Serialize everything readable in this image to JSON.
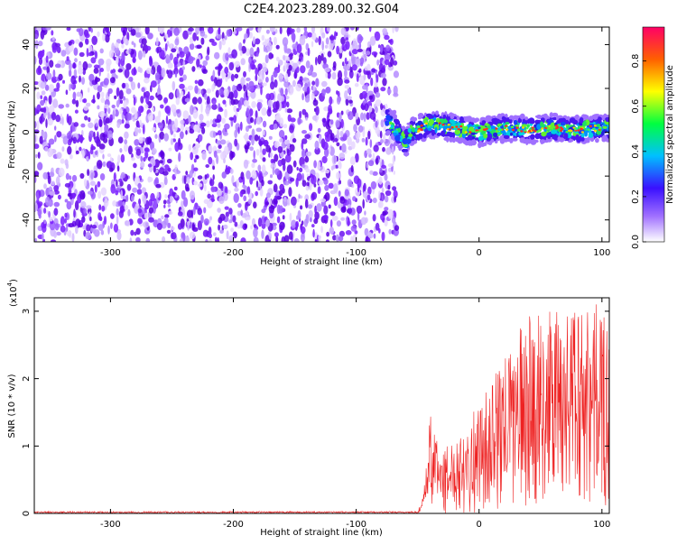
{
  "title": "C2E4.2023.289.00.32.G04",
  "colors": {
    "snr_line": "#ee2222",
    "spec_low": "#7a1fff",
    "spec_band": "#2222dd"
  },
  "chart_data": [
    {
      "type": "heatmap",
      "title": "C2E4.2023.289.00.32.G04",
      "xlabel": "Height of straight line (km)",
      "ylabel": "Frequency (Hz)",
      "xlim": [
        -362,
        106
      ],
      "ylim": [
        -50,
        48
      ],
      "xticks": [
        -300,
        -200,
        -100,
        0,
        100
      ],
      "yticks": [
        -40,
        -20,
        0,
        20,
        40
      ],
      "colorbar": {
        "label": "Normalized spectral amplitude",
        "range": [
          0,
          0.95
        ],
        "ticks": [
          0.0,
          0.2,
          0.4,
          0.6,
          0.8
        ],
        "colormap": "rainbow (violet to red)"
      },
      "regions": [
        {
          "x": [
            -362,
            -75
          ],
          "y": [
            -50,
            48
          ],
          "level": 0.15
        },
        {
          "x": [
            -75,
            106
          ],
          "y": [
            -8,
            8
          ],
          "level": 0.6
        }
      ],
      "signal_track": [
        [
          -80,
          8
        ],
        [
          -70,
          3
        ],
        [
          -60,
          -5
        ],
        [
          -55,
          0
        ],
        [
          -40,
          4
        ],
        [
          -20,
          2
        ],
        [
          0,
          0
        ],
        [
          20,
          2
        ],
        [
          40,
          1
        ],
        [
          60,
          2
        ],
        [
          80,
          1
        ],
        [
          100,
          2
        ]
      ],
      "grid": false
    },
    {
      "type": "line",
      "xlabel": "Height of straight line (km)",
      "ylabel": "SNR (10 * v/v)",
      "y_multiplier_label": "(x10",
      "y_multiplier_exp": "4",
      "xlim": [
        -362,
        106
      ],
      "ylim": [
        0,
        3.2
      ],
      "xticks": [
        -300,
        -200,
        -100,
        0,
        100
      ],
      "yticks": [
        0,
        1,
        2,
        3
      ],
      "noise_floor": 0.02,
      "envelope": [
        [
          -362,
          0.02
        ],
        [
          -50,
          0.03
        ],
        [
          -45,
          0.3
        ],
        [
          -40,
          1.5
        ],
        [
          -30,
          0.9
        ],
        [
          -10,
          1.4
        ],
        [
          0,
          1.6
        ],
        [
          20,
          2.3
        ],
        [
          40,
          3.0
        ],
        [
          60,
          3.0
        ],
        [
          90,
          3.2
        ],
        [
          106,
          3.0
        ]
      ],
      "grid": false
    }
  ]
}
